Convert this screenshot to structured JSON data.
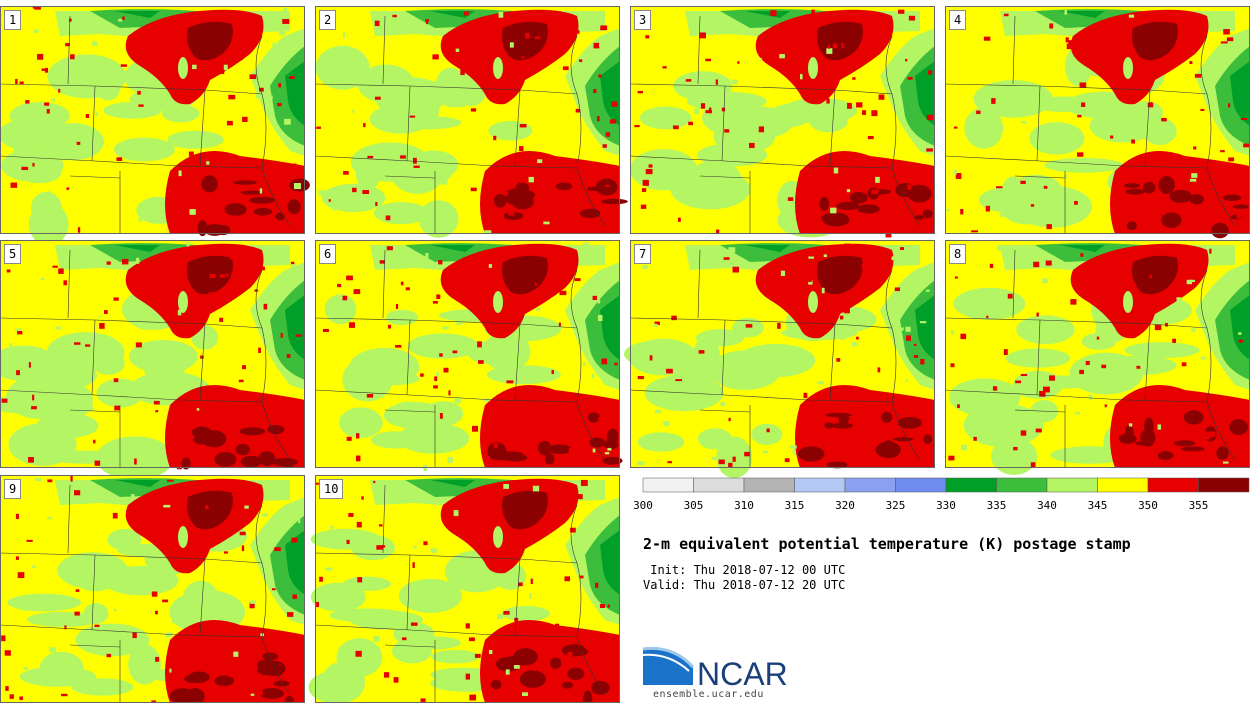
{
  "title": "2-m equivalent potential temperature (K) postage stamp",
  "init": " Init: Thu 2018-07-12 00 UTC",
  "valid": "Valid: Thu 2018-07-12 20 UTC",
  "members": [
    "1",
    "2",
    "3",
    "4",
    "5",
    "6",
    "7",
    "8",
    "9",
    "10"
  ],
  "colorbar": {
    "ticks": [
      "300",
      "305",
      "310",
      "315",
      "320",
      "325",
      "330",
      "335",
      "340",
      "345",
      "350",
      "355"
    ],
    "colors": [
      "#f2f2f2",
      "#dcdcdc",
      "#b4b4b4",
      "#b4c8f5",
      "#8ca0f0",
      "#6e8cf0",
      "#00a028",
      "#3cbe3c",
      "#b4f564",
      "#ffff00",
      "#e60000",
      "#8b0000"
    ]
  },
  "map_colors": {
    "yellow": "#ffff00",
    "light_green": "#b4f564",
    "green": "#3cbe3c",
    "dark_green": "#00a028",
    "red": "#e60000",
    "dark_red": "#8b0000"
  },
  "logo": {
    "text": "NCAR",
    "url": "ensemble.ucar.edu"
  }
}
